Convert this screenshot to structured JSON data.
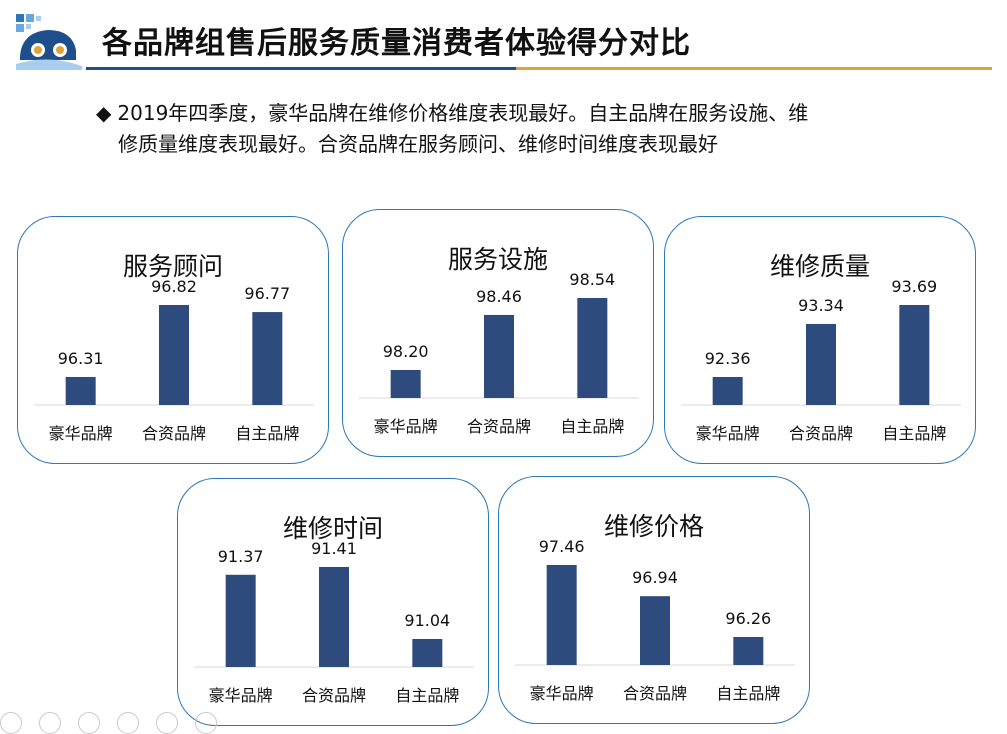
{
  "header": {
    "title": "各品牌组售后服务质量消费者体验得分对比",
    "logo_icon": "car-logo-icon"
  },
  "summary": {
    "line1": "2019年四季度，豪华品牌在维修价格维度表现最好。自主品牌在服务设施、维",
    "line2": "修质量维度表现最好。合资品牌在服务顾问、维修时间维度表现最好"
  },
  "colors": {
    "bar": "#2e4b7e",
    "card_border": "#2e77b8",
    "title_rule_left": "#1f4e8c",
    "title_rule_right": "#e1a23a"
  },
  "chart_data": [
    {
      "type": "bar",
      "title": "服务顾问",
      "categories": [
        "豪华品牌",
        "合资品牌",
        "自主品牌"
      ],
      "values": [
        96.31,
        96.82,
        96.77
      ],
      "data_labels": [
        "96.31",
        "96.82",
        "96.77"
      ]
    },
    {
      "type": "bar",
      "title": "服务设施",
      "categories": [
        "豪华品牌",
        "合资品牌",
        "自主品牌"
      ],
      "values": [
        98.2,
        98.46,
        98.54
      ],
      "data_labels": [
        "98.20",
        "98.46",
        "98.54"
      ]
    },
    {
      "type": "bar",
      "title": "维修质量",
      "categories": [
        "豪华品牌",
        "合资品牌",
        "自主品牌"
      ],
      "values": [
        92.36,
        93.34,
        93.69
      ],
      "data_labels": [
        "92.36",
        "93.34",
        "93.69"
      ]
    },
    {
      "type": "bar",
      "title": "维修时间",
      "categories": [
        "豪华品牌",
        "合资品牌",
        "自主品牌"
      ],
      "values": [
        91.37,
        91.41,
        91.04
      ],
      "data_labels": [
        "91.37",
        "91.41",
        "91.04"
      ]
    },
    {
      "type": "bar",
      "title": "维修价格",
      "categories": [
        "豪华品牌",
        "合资品牌",
        "自主品牌"
      ],
      "values": [
        97.46,
        96.94,
        96.26
      ],
      "data_labels": [
        "97.46",
        "96.94",
        "96.26"
      ]
    }
  ],
  "taskbar": {
    "icons": [
      "prev-icon",
      "next-icon",
      "pen-icon",
      "slides-icon",
      "zoom-icon",
      "more-icon"
    ]
  }
}
